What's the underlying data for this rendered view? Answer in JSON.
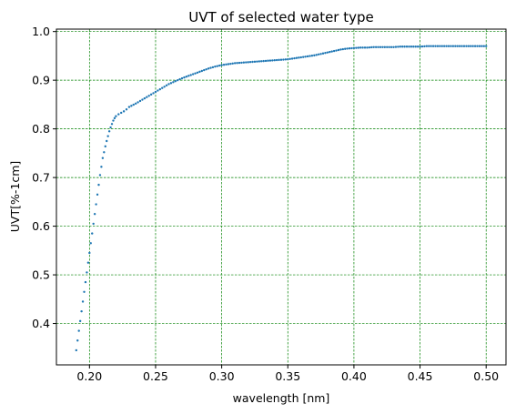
{
  "chart_data": {
    "type": "scatter",
    "title": "UVT of selected water type",
    "xlabel": "wavelength [nm]",
    "ylabel": "UVT[%-1cm]",
    "xlim": [
      0.175,
      0.515
    ],
    "ylim": [
      0.315,
      1.005
    ],
    "xticks": [
      0.2,
      0.25,
      0.3,
      0.35,
      0.4,
      0.45,
      0.5
    ],
    "xtick_labels": [
      "0.20",
      "0.25",
      "0.30",
      "0.35",
      "0.40",
      "0.45",
      "0.50"
    ],
    "yticks": [
      0.4,
      0.5,
      0.6,
      0.7,
      0.8,
      0.9,
      1.0
    ],
    "ytick_labels": [
      "0.4",
      "0.5",
      "0.6",
      "0.7",
      "0.8",
      "0.9",
      "1.0"
    ],
    "grid": true,
    "grid_color": "#008000",
    "marker_color": "#1f77b4",
    "series": [
      {
        "x": [
          0.19,
          0.191,
          0.192,
          0.193,
          0.194,
          0.195,
          0.196,
          0.197,
          0.198,
          0.199,
          0.2,
          0.201,
          0.202,
          0.203,
          0.204,
          0.205,
          0.206,
          0.207,
          0.208,
          0.209,
          0.21,
          0.211,
          0.212,
          0.213,
          0.214,
          0.215,
          0.216,
          0.217,
          0.218,
          0.219,
          0.22,
          0.222,
          0.224,
          0.226,
          0.228,
          0.23,
          0.235,
          0.24,
          0.245,
          0.25,
          0.255,
          0.26,
          0.265,
          0.27,
          0.275,
          0.28,
          0.285,
          0.29,
          0.295,
          0.3,
          0.305,
          0.31,
          0.315,
          0.32,
          0.325,
          0.33,
          0.335,
          0.34,
          0.345,
          0.35,
          0.355,
          0.36,
          0.365,
          0.37,
          0.375,
          0.38,
          0.385,
          0.39,
          0.395,
          0.4,
          0.405,
          0.41,
          0.415,
          0.42,
          0.425,
          0.43,
          0.435,
          0.44,
          0.445,
          0.45,
          0.455,
          0.46,
          0.465,
          0.47,
          0.475,
          0.48,
          0.485,
          0.49,
          0.495,
          0.5
        ],
        "y": [
          0.345,
          0.365,
          0.385,
          0.405,
          0.425,
          0.445,
          0.465,
          0.485,
          0.505,
          0.525,
          0.545,
          0.565,
          0.585,
          0.605,
          0.625,
          0.645,
          0.665,
          0.685,
          0.705,
          0.722,
          0.74,
          0.752,
          0.764,
          0.775,
          0.785,
          0.795,
          0.803,
          0.81,
          0.817,
          0.822,
          0.826,
          0.83,
          0.833,
          0.836,
          0.84,
          0.845,
          0.852,
          0.86,
          0.868,
          0.876,
          0.884,
          0.892,
          0.898,
          0.904,
          0.909,
          0.914,
          0.919,
          0.924,
          0.928,
          0.931,
          0.933,
          0.935,
          0.936,
          0.937,
          0.938,
          0.939,
          0.94,
          0.941,
          0.942,
          0.943,
          0.945,
          0.947,
          0.949,
          0.951,
          0.954,
          0.957,
          0.96,
          0.963,
          0.965,
          0.966,
          0.967,
          0.967,
          0.968,
          0.968,
          0.968,
          0.968,
          0.969,
          0.969,
          0.969,
          0.969,
          0.97,
          0.97,
          0.97,
          0.97,
          0.97,
          0.97,
          0.97,
          0.97,
          0.97,
          0.97
        ]
      }
    ]
  }
}
